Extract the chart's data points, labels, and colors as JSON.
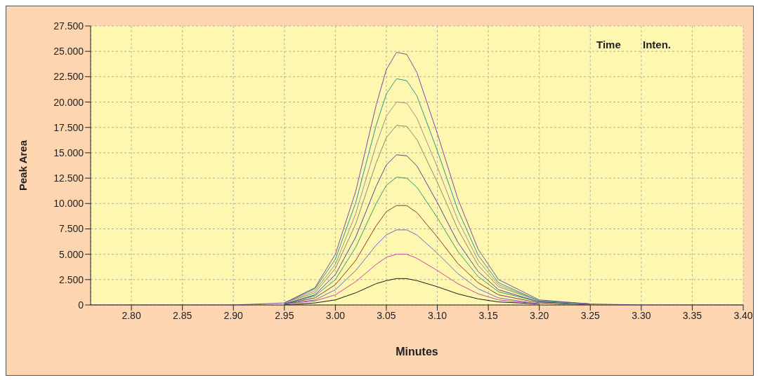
{
  "chart_data": {
    "type": "line",
    "xlabel": "Minutes",
    "ylabel": "Peak Area",
    "annotations": [
      "Time",
      "Inten."
    ],
    "x": [
      2.76,
      2.9,
      2.95,
      2.98,
      3.0,
      3.02,
      3.04,
      3.05,
      3.06,
      3.07,
      3.08,
      3.1,
      3.12,
      3.14,
      3.16,
      3.2,
      3.25,
      3.3,
      3.4
    ],
    "series": [
      {
        "color": "#1a1a1a",
        "values": [
          null,
          null,
          0,
          0.2,
          0.5,
          1.2,
          2.1,
          2.4,
          2.6,
          2.6,
          2.4,
          1.8,
          1.1,
          0.6,
          0.3,
          0.1,
          null,
          null,
          null
        ]
      },
      {
        "color": "#cc44aa",
        "values": [
          null,
          null,
          0.1,
          0.4,
          1.0,
          2.3,
          4.0,
          4.7,
          5.0,
          5.0,
          4.6,
          3.4,
          2.1,
          1.1,
          0.5,
          0.1,
          null,
          null,
          null
        ]
      },
      {
        "color": "#6a6acc",
        "values": [
          null,
          null,
          0.1,
          0.5,
          1.5,
          3.4,
          5.9,
          6.9,
          7.4,
          7.4,
          6.9,
          5.1,
          3.1,
          1.6,
          0.7,
          0.1,
          null,
          null,
          null
        ]
      },
      {
        "color": "#8b3a2a",
        "values": [
          null,
          null,
          0.1,
          0.7,
          2.0,
          4.4,
          7.8,
          9.2,
          9.8,
          9.8,
          9.1,
          6.7,
          4.1,
          2.2,
          1.0,
          0.2,
          0,
          null,
          null
        ]
      },
      {
        "color": "#2e9e6a",
        "values": [
          null,
          null,
          0.1,
          0.9,
          2.5,
          5.7,
          10.0,
          11.8,
          12.6,
          12.5,
          11.6,
          8.6,
          5.3,
          2.8,
          1.3,
          0.3,
          0.1,
          null,
          null
        ]
      },
      {
        "color": "#4a4a9a",
        "values": [
          null,
          null,
          0.1,
          1.0,
          3.0,
          6.7,
          11.7,
          13.8,
          14.8,
          14.7,
          13.7,
          10.1,
          6.2,
          3.3,
          1.5,
          0.3,
          0.1,
          null,
          null
        ]
      },
      {
        "color": "#8a8a6a",
        "values": [
          null,
          null,
          0.2,
          1.2,
          3.6,
          8.0,
          14.0,
          16.5,
          17.7,
          17.6,
          16.3,
          12.1,
          7.5,
          3.9,
          1.8,
          0.4,
          0.1,
          null,
          null
        ]
      },
      {
        "color": "#a09090",
        "values": [
          null,
          null,
          0.2,
          1.4,
          4.0,
          9.0,
          15.8,
          18.6,
          20.0,
          19.9,
          18.4,
          13.6,
          8.4,
          4.4,
          2.0,
          0.4,
          0.1,
          null,
          null
        ]
      },
      {
        "color": "#2a9a8a",
        "values": [
          null,
          null,
          0.2,
          1.6,
          4.5,
          10.1,
          17.7,
          20.8,
          22.3,
          22.1,
          20.6,
          15.2,
          9.4,
          4.9,
          2.2,
          0.4,
          0.1,
          null,
          null
        ]
      },
      {
        "color": "#7a4aaa",
        "values": [
          0,
          0,
          0.2,
          1.7,
          5.0,
          11.2,
          19.7,
          23.2,
          24.9,
          24.7,
          22.9,
          16.9,
          10.5,
          5.5,
          2.5,
          0.5,
          0.1,
          0,
          0
        ]
      }
    ],
    "xlim": [
      2.76,
      3.4
    ],
    "xticks": [
      {
        "value": 2.8,
        "label": "2.80"
      },
      2.85,
      {
        "value": 2.9,
        "label": "2.90"
      },
      2.95,
      {
        "value": 3.0,
        "label": "3.00"
      },
      3.05,
      {
        "value": 3.1,
        "label": "3.10"
      },
      3.15,
      {
        "value": 3.2,
        "label": "3.20"
      },
      3.25,
      {
        "value": 3.3,
        "label": "3.30"
      },
      3.35,
      {
        "value": 3.4,
        "label": "3.40"
      }
    ],
    "ylim": [
      0,
      27.5
    ],
    "yticks": [
      0,
      {
        "value": 2.5,
        "label": "2.500"
      },
      {
        "value": 5,
        "label": "5.000"
      },
      {
        "value": 7.5,
        "label": "7.500"
      },
      {
        "value": 10,
        "label": "10.000"
      },
      {
        "value": 12.5,
        "label": "12.500"
      },
      {
        "value": 15,
        "label": "15.000"
      },
      {
        "value": 17.5,
        "label": "17.500"
      },
      {
        "value": 20,
        "label": "20.000"
      },
      {
        "value": 22.5,
        "label": "22.500"
      },
      {
        "value": 25,
        "label": "25.000"
      },
      {
        "value": 27.5,
        "label": "27.500"
      }
    ],
    "grid": true,
    "marker": "none",
    "line_style": "solid"
  }
}
